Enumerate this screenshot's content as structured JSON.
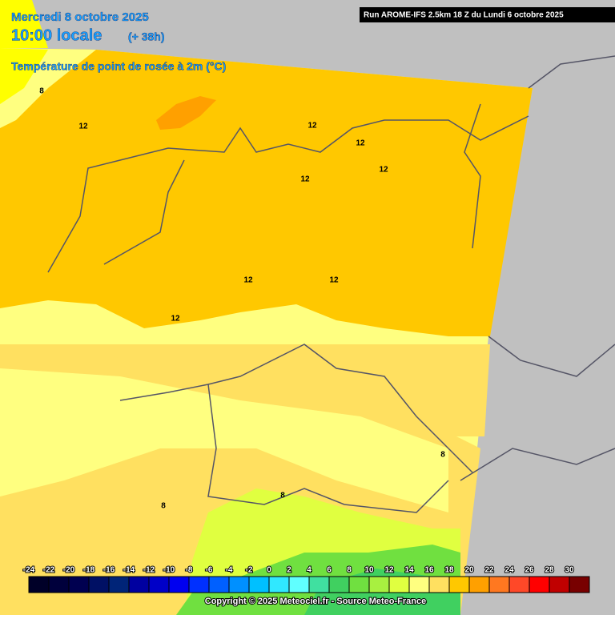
{
  "header": {
    "date": "Mercredi 8 octobre 2025",
    "time": "10:00 locale",
    "lead": "(+ 38h)",
    "parameter": "Température de point de rosée à 2m (°C)",
    "run": "Run AROME-IFS 2.5km 18 Z du Lundi 6 octobre 2025"
  },
  "contour_labels": [
    8,
    12,
    12,
    12,
    12,
    12,
    12,
    12,
    12,
    8,
    8,
    8
  ],
  "colorbar": {
    "ticks": [
      -24,
      -22,
      -20,
      -18,
      -16,
      -14,
      -12,
      -10,
      -8,
      -6,
      -4,
      -2,
      0,
      2,
      4,
      6,
      8,
      10,
      12,
      14,
      16,
      18,
      20,
      22,
      24,
      26,
      28,
      30
    ],
    "colors": [
      "#000028",
      "#00003c",
      "#000050",
      "#001064",
      "#002478",
      "#0000a0",
      "#0000c8",
      "#0000f0",
      "#0030ff",
      "#0060ff",
      "#0090ff",
      "#00c0ff",
      "#30e8ff",
      "#60ffff",
      "#40e0a0",
      "#40d060",
      "#70e040",
      "#a8f040",
      "#e0ff40",
      "#ffff80",
      "#ffe060",
      "#ffc800",
      "#ffa000",
      "#ff7820",
      "#ff4828",
      "#ff0000",
      "#c00000",
      "#780000"
    ]
  },
  "copyright": "Copyright © 2025 Meteociel.fr - Source Meteo-France"
}
